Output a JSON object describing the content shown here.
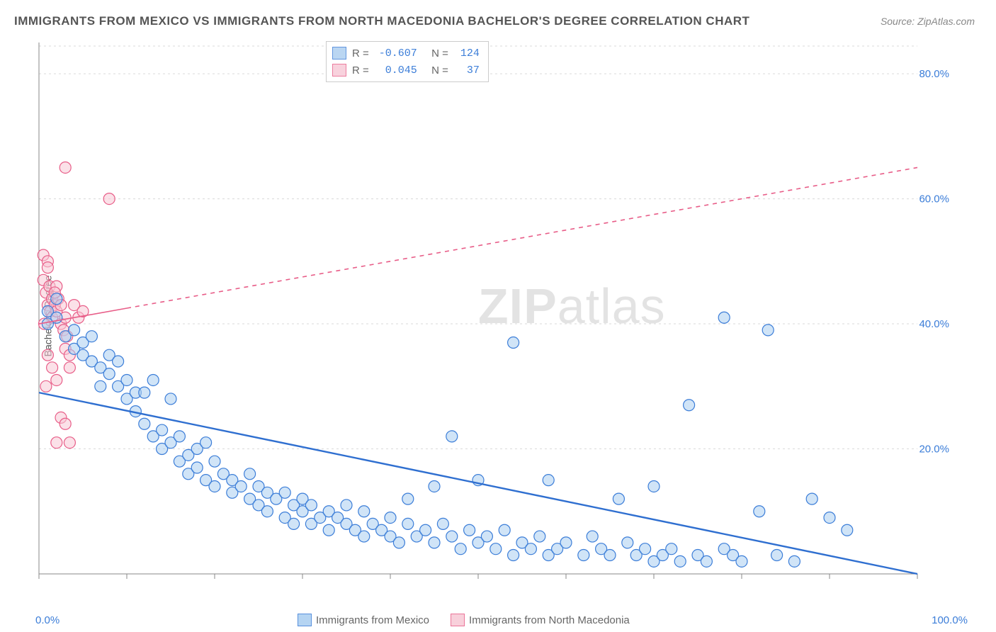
{
  "title": "IMMIGRANTS FROM MEXICO VS IMMIGRANTS FROM NORTH MACEDONIA BACHELOR'S DEGREE CORRELATION CHART",
  "source": "Source: ZipAtlas.com",
  "ylabel": "Bachelor's Degree",
  "watermark_bold": "ZIP",
  "watermark_light": "atlas",
  "xlim": [
    0,
    100
  ],
  "ylim": [
    0,
    85
  ],
  "xticks": [
    0,
    10,
    20,
    30,
    40,
    50,
    60,
    70,
    80,
    90,
    100
  ],
  "xtick_labels_shown": {
    "0": "0.0%",
    "100": "100.0%"
  },
  "yticks": [
    20,
    40,
    60,
    80
  ],
  "ytick_labels": [
    "20.0%",
    "40.0%",
    "60.0%",
    "80.0%"
  ],
  "grid_color": "#d9d9d9",
  "axis_color": "#888888",
  "tick_color": "#888888",
  "background_color": "#ffffff",
  "tick_label_color": "#3b7dd8",
  "marker_radius": 8,
  "marker_stroke_width": 1.2,
  "series": [
    {
      "id": "mexico",
      "label": "Immigrants from Mexico",
      "fill": "#a9cdf0",
      "stroke": "#3b7dd8",
      "fill_opacity": 0.55,
      "R": "-0.607",
      "N": "124",
      "trend": {
        "x1": 0,
        "y1": 29,
        "x2": 100,
        "y2": 0,
        "dashed_from_x": null,
        "color": "#2f6fd0",
        "width": 2.4
      },
      "points": [
        [
          1,
          42
        ],
        [
          1,
          40
        ],
        [
          2,
          44
        ],
        [
          2,
          41
        ],
        [
          3,
          38
        ],
        [
          4,
          39
        ],
        [
          4,
          36
        ],
        [
          5,
          35
        ],
        [
          5,
          37
        ],
        [
          6,
          38
        ],
        [
          6,
          34
        ],
        [
          7,
          33
        ],
        [
          7,
          30
        ],
        [
          8,
          32
        ],
        [
          8,
          35
        ],
        [
          9,
          34
        ],
        [
          9,
          30
        ],
        [
          10,
          31
        ],
        [
          10,
          28
        ],
        [
          11,
          29
        ],
        [
          11,
          26
        ],
        [
          12,
          24
        ],
        [
          12,
          29
        ],
        [
          13,
          31
        ],
        [
          13,
          22
        ],
        [
          14,
          20
        ],
        [
          14,
          23
        ],
        [
          15,
          21
        ],
        [
          15,
          28
        ],
        [
          16,
          22
        ],
        [
          16,
          18
        ],
        [
          17,
          19
        ],
        [
          17,
          16
        ],
        [
          18,
          17
        ],
        [
          18,
          20
        ],
        [
          19,
          21
        ],
        [
          19,
          15
        ],
        [
          20,
          14
        ],
        [
          20,
          18
        ],
        [
          21,
          16
        ],
        [
          22,
          15
        ],
        [
          22,
          13
        ],
        [
          23,
          14
        ],
        [
          24,
          12
        ],
        [
          24,
          16
        ],
        [
          25,
          11
        ],
        [
          25,
          14
        ],
        [
          26,
          13
        ],
        [
          26,
          10
        ],
        [
          27,
          12
        ],
        [
          28,
          9
        ],
        [
          28,
          13
        ],
        [
          29,
          11
        ],
        [
          29,
          8
        ],
        [
          30,
          10
        ],
        [
          30,
          12
        ],
        [
          31,
          8
        ],
        [
          31,
          11
        ],
        [
          32,
          9
        ],
        [
          33,
          10
        ],
        [
          33,
          7
        ],
        [
          34,
          9
        ],
        [
          35,
          11
        ],
        [
          35,
          8
        ],
        [
          36,
          7
        ],
        [
          37,
          10
        ],
        [
          37,
          6
        ],
        [
          38,
          8
        ],
        [
          39,
          7
        ],
        [
          40,
          9
        ],
        [
          40,
          6
        ],
        [
          41,
          5
        ],
        [
          42,
          8
        ],
        [
          42,
          12
        ],
        [
          43,
          6
        ],
        [
          44,
          7
        ],
        [
          45,
          5
        ],
        [
          45,
          14
        ],
        [
          46,
          8
        ],
        [
          47,
          6
        ],
        [
          47,
          22
        ],
        [
          48,
          4
        ],
        [
          49,
          7
        ],
        [
          50,
          5
        ],
        [
          50,
          15
        ],
        [
          51,
          6
        ],
        [
          52,
          4
        ],
        [
          53,
          7
        ],
        [
          54,
          3
        ],
        [
          54,
          37
        ],
        [
          55,
          5
        ],
        [
          56,
          4
        ],
        [
          57,
          6
        ],
        [
          58,
          3
        ],
        [
          58,
          15
        ],
        [
          59,
          4
        ],
        [
          60,
          5
        ],
        [
          62,
          3
        ],
        [
          63,
          6
        ],
        [
          64,
          4
        ],
        [
          65,
          3
        ],
        [
          66,
          12
        ],
        [
          67,
          5
        ],
        [
          68,
          3
        ],
        [
          69,
          4
        ],
        [
          70,
          2
        ],
        [
          70,
          14
        ],
        [
          71,
          3
        ],
        [
          72,
          4
        ],
        [
          73,
          2
        ],
        [
          74,
          27
        ],
        [
          75,
          3
        ],
        [
          76,
          2
        ],
        [
          78,
          4
        ],
        [
          78,
          41
        ],
        [
          79,
          3
        ],
        [
          80,
          2
        ],
        [
          82,
          10
        ],
        [
          83,
          39
        ],
        [
          84,
          3
        ],
        [
          86,
          2
        ],
        [
          88,
          12
        ],
        [
          90,
          9
        ],
        [
          92,
          7
        ]
      ]
    },
    {
      "id": "macedonia",
      "label": "Immigrants from North Macedonia",
      "fill": "#f7c8d5",
      "stroke": "#e85d88",
      "fill_opacity": 0.55,
      "R": "0.045",
      "N": "37",
      "trend": {
        "x1": 0,
        "y1": 40,
        "x2": 100,
        "y2": 65,
        "dashed_from_x": 10,
        "color": "#e85d88",
        "width": 1.6
      },
      "points": [
        [
          0.5,
          51
        ],
        [
          0.5,
          47
        ],
        [
          0.8,
          45
        ],
        [
          1,
          43
        ],
        [
          1,
          50
        ],
        [
          1.2,
          46
        ],
        [
          1.3,
          42
        ],
        [
          1.5,
          41
        ],
        [
          1.5,
          44
        ],
        [
          1.8,
          43
        ],
        [
          2,
          42
        ],
        [
          2,
          46
        ],
        [
          2.2,
          44
        ],
        [
          2.5,
          40
        ],
        [
          2.5,
          43
        ],
        [
          2.8,
          39
        ],
        [
          3,
          41
        ],
        [
          3,
          36
        ],
        [
          3.2,
          38
        ],
        [
          3.5,
          35
        ],
        [
          3.5,
          33
        ],
        [
          1,
          35
        ],
        [
          1.5,
          33
        ],
        [
          2,
          31
        ],
        [
          0.8,
          30
        ],
        [
          2.5,
          25
        ],
        [
          3,
          24
        ],
        [
          3.5,
          21
        ],
        [
          2,
          21
        ],
        [
          4,
          43
        ],
        [
          4.5,
          41
        ],
        [
          5,
          42
        ],
        [
          3,
          65
        ],
        [
          8,
          60
        ],
        [
          1,
          49
        ],
        [
          0.6,
          40
        ],
        [
          1.8,
          45
        ]
      ]
    }
  ],
  "stat_legend_labels": {
    "r": "R =",
    "n": "N ="
  },
  "bottom_legend_order": [
    "mexico",
    "macedonia"
  ]
}
